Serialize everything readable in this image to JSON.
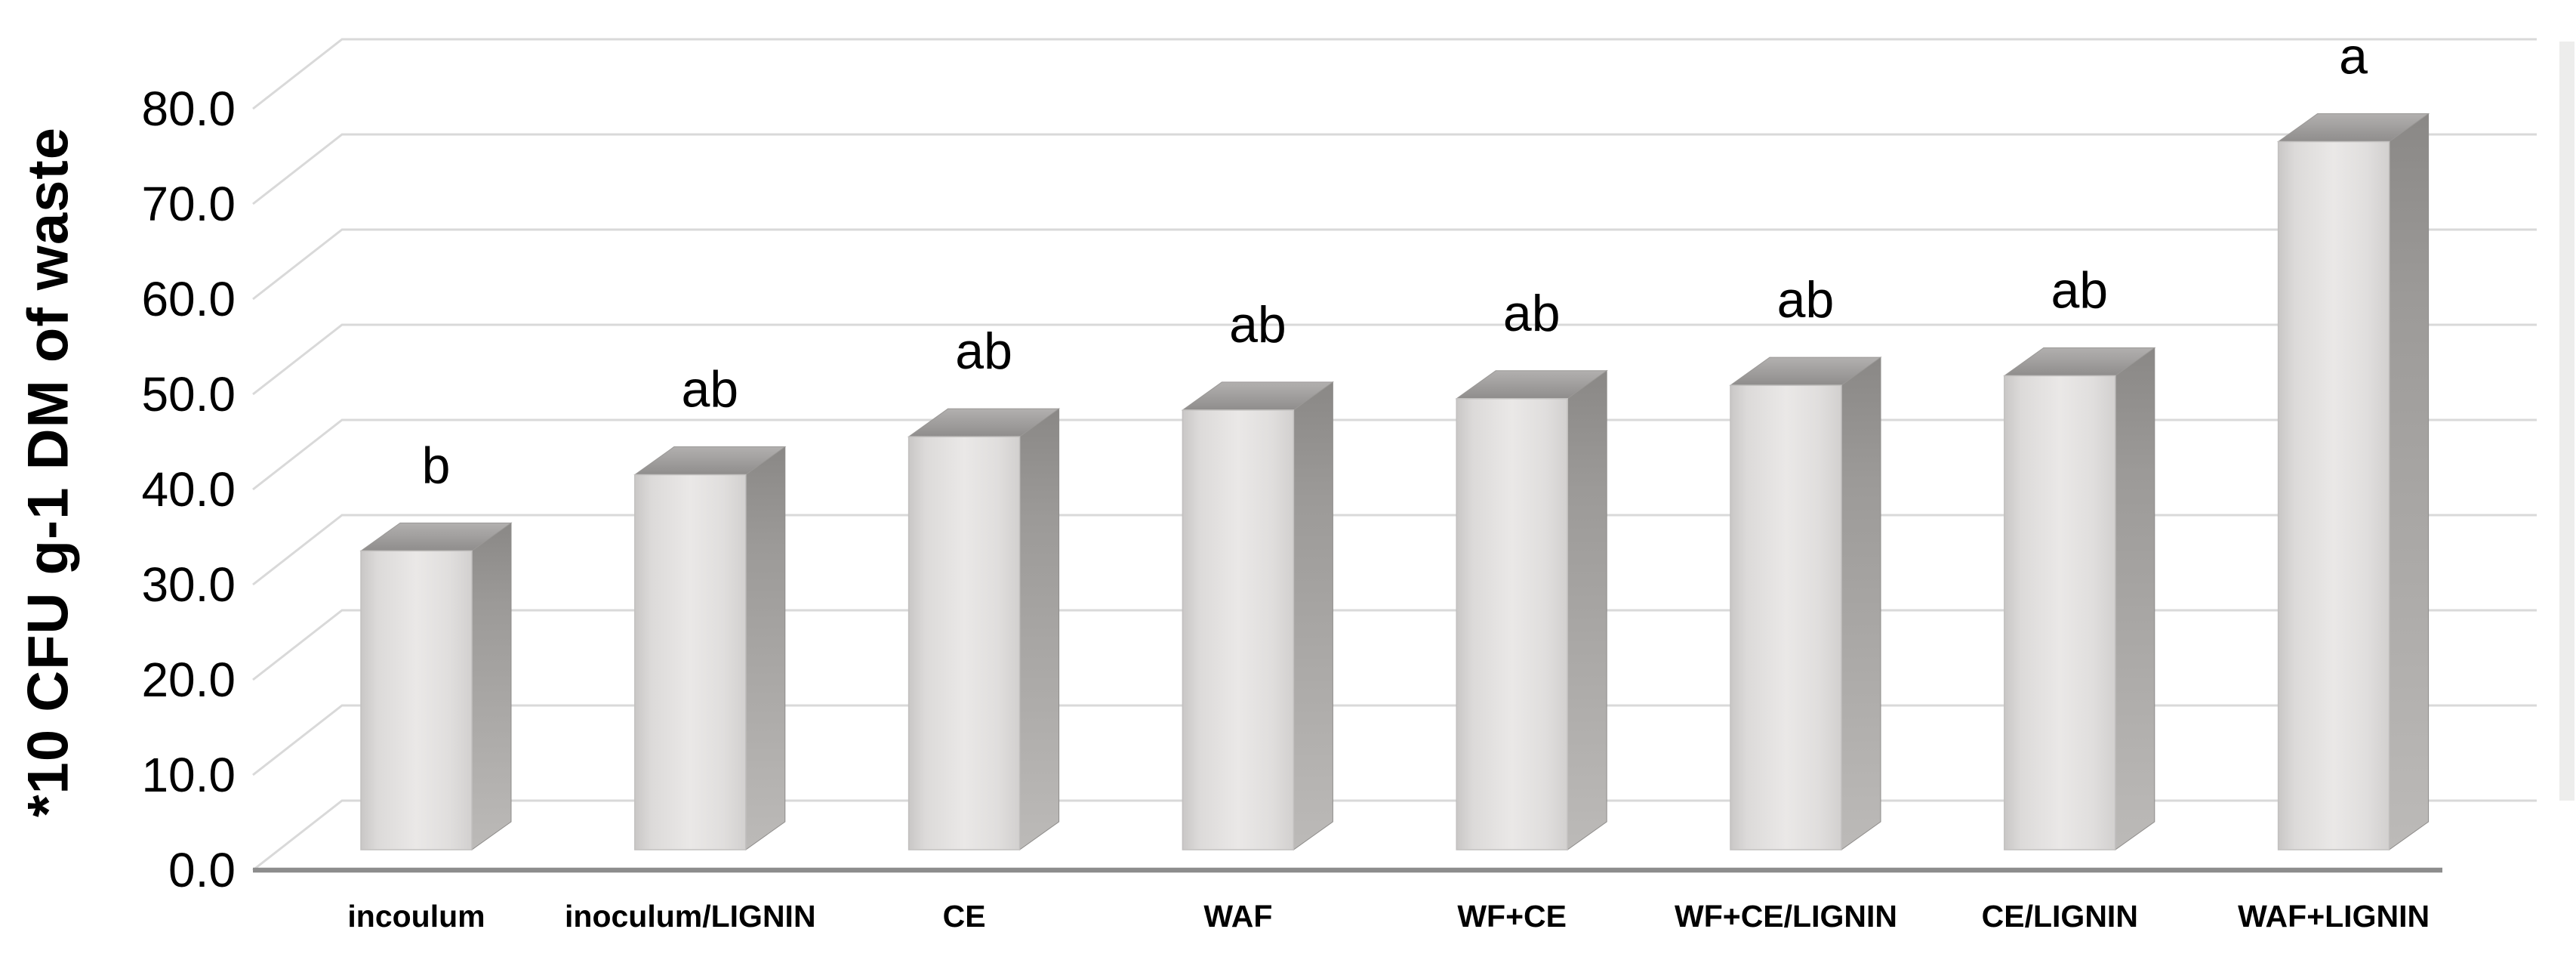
{
  "chart_data": {
    "type": "bar",
    "style": "3d-column",
    "title": "",
    "xlabel": "",
    "ylabel": "*10 CFU g-1 DM of waste",
    "ylim": [
      0,
      80
    ],
    "ytick_step": 10,
    "ytick_labels": [
      "0.0",
      "10.0",
      "20.0",
      "30.0",
      "40.0",
      "50.0",
      "60.0",
      "70.0",
      "80.0"
    ],
    "categories": [
      "incoulum",
      "inoculum/LIGNIN",
      "CE",
      "WAF",
      "WF+CE",
      "WF+CE/LIGNIN",
      "CE/LIGNIN",
      "WAF+LIGNIN"
    ],
    "values": [
      31.4,
      39.4,
      43.4,
      46.2,
      47.4,
      48.8,
      49.8,
      74.4
    ],
    "significance_letters": [
      "b",
      "ab",
      "ab",
      "ab",
      "ab",
      "ab",
      "ab",
      "a"
    ],
    "series_name": "CFU",
    "grid": true,
    "legend": false,
    "colors": {
      "bar_front": "#e6e4e3",
      "bar_top": "#a09e9d",
      "bar_side": "#a5a3a1",
      "gridline": "#d9d9d9",
      "axis_line": "#8d8d8d",
      "text": "#000000"
    }
  }
}
